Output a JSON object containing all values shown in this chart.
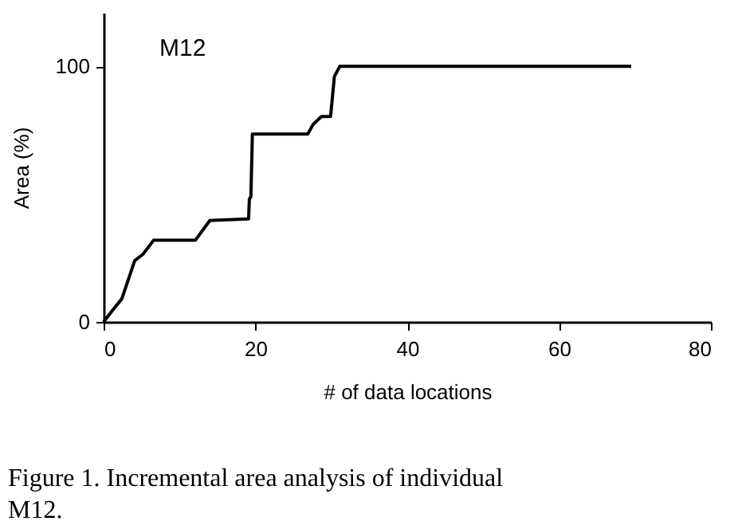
{
  "chart_data": {
    "type": "step",
    "xlabel": "# of data locations",
    "ylabel": "Area (%)",
    "x": [
      0,
      1.3,
      2.4,
      4.1,
      5.2,
      6.6,
      12.1,
      14,
      19.1,
      19.2,
      19.4,
      19.6,
      26.9,
      27.6,
      28.7,
      29.9,
      30.4,
      31.1,
      69.5
    ],
    "series": [
      {
        "color": "#000000",
        "values": [
          0,
          5,
          9,
          24,
          26.5,
          32,
          32,
          39.7,
          40.3,
          48,
          49,
          73.5,
          73.5,
          77.3,
          80.4,
          80.4,
          96,
          100,
          100
        ]
      }
    ],
    "xlim": [
      0,
      80
    ],
    "xticks": [
      0,
      20,
      40,
      60,
      80
    ],
    "ylim": [
      0,
      121
    ],
    "yticks": [
      0,
      100
    ],
    "grid": false,
    "marker": "none",
    "line_style": "solid",
    "annotations": [
      "M12",
      "Figure 1. Incremental area analysis of individual M12."
    ]
  }
}
